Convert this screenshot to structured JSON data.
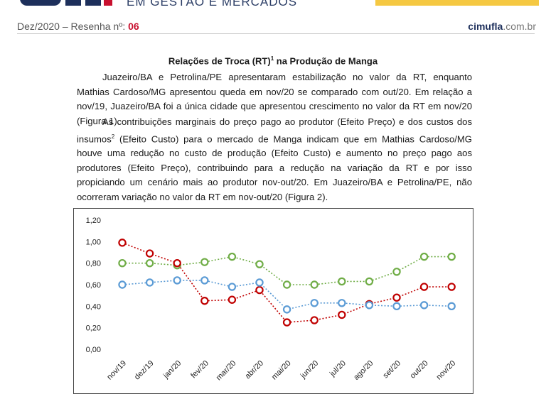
{
  "header": {
    "tagline": "EM GESTÃO E MERCADOS",
    "issue_prefix": "Dez/2020 – Resenha nº: ",
    "issue_number": "06",
    "site_bold": "cimufla",
    "site_suffix": ".com.br"
  },
  "article": {
    "title_main": "Relações de Troca (RT)",
    "title_sup": "1",
    "title_rest": " na Produção de Manga",
    "p1": "Juazeiro/BA e Petrolina/PE apresentaram estabilização no valor da RT, enquanto Mathias Cardoso/MG apresentou queda em nov/20 se comparado com out/20. Em relação a nov/19, Juazeiro/BA foi a única cidade que apresentou crescimento no valor da RT em nov/20 (Figura 1).",
    "p2_a": "As contribuições marginais do preço pago ao produtor (Efeito Preço) e dos custos dos insumos",
    "p2_sup": "2",
    "p2_b": " (Efeito Custo) para o mercado de Manga indicam que em Mathias Cardoso/MG houve uma redução no custo de produção (Efeito Custo) e aumento no preço pago aos produtores (Efeito Preço), contribuindo para a redução na variação da RT e por isso propiciando um cenário mais ao produtor nov-out/20. Em Juazeiro/BA e Petrolina/PE, não ocorreram variação no valor da RT em nov-out/20 (Figura 2)."
  },
  "chart_data": {
    "type": "line",
    "categories": [
      "nov/19",
      "dez/19",
      "jan/20",
      "fev/20",
      "mar/20",
      "abr/20",
      "mai/20",
      "jun/20",
      "jul/20",
      "ago/20",
      "set/20",
      "out/20",
      "nov/20"
    ],
    "y_ticks": [
      "0,00",
      "0,20",
      "0,40",
      "0,60",
      "0,80",
      "1,00",
      "1,20"
    ],
    "ylim": [
      0,
      1.2
    ],
    "series": [
      {
        "name": "green",
        "color": "#70ad47",
        "values": [
          0.8,
          0.8,
          0.78,
          0.81,
          0.86,
          0.79,
          0.6,
          0.6,
          0.63,
          0.63,
          0.72,
          0.86,
          0.86
        ]
      },
      {
        "name": "red",
        "color": "#c00000",
        "values": [
          0.99,
          0.89,
          0.8,
          0.45,
          0.46,
          0.55,
          0.25,
          0.27,
          0.32,
          0.42,
          0.48,
          0.58,
          0.58
        ]
      },
      {
        "name": "blue",
        "color": "#5b9bd5",
        "values": [
          0.6,
          0.62,
          0.64,
          0.64,
          0.58,
          0.62,
          0.37,
          0.43,
          0.43,
          0.41,
          0.4,
          0.41,
          0.4
        ]
      }
    ]
  }
}
